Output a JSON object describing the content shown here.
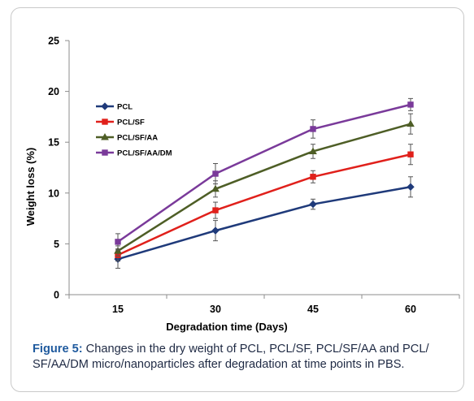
{
  "chart_data": {
    "type": "line",
    "x": [
      15,
      30,
      45,
      60
    ],
    "xlabel": "Degradation time (Days)",
    "ylabel": "Weight loss (%)",
    "ylim": [
      0,
      25
    ],
    "yticks": [
      0,
      5,
      10,
      15,
      20,
      25
    ],
    "xtick_labels": [
      "15",
      "30",
      "45",
      "60"
    ],
    "grid": false,
    "legend_position": "upper-left",
    "series": [
      {
        "name": "PCL",
        "color": "#1f3a7a",
        "marker": "diamond",
        "values": [
          3.5,
          6.3,
          8.9,
          10.6
        ],
        "errors": [
          0.9,
          1.0,
          0.5,
          1.0
        ]
      },
      {
        "name": "PCL/SF",
        "color": "#e0201b",
        "marker": "square",
        "values": [
          3.9,
          8.3,
          11.6,
          13.8
        ],
        "errors": [
          0.6,
          0.8,
          0.6,
          1.0
        ]
      },
      {
        "name": "PCL/SF/AA",
        "color": "#4e5e26",
        "marker": "triangle",
        "values": [
          4.3,
          10.4,
          14.1,
          16.8
        ],
        "errors": [
          0.5,
          0.8,
          0.7,
          1.0
        ]
      },
      {
        "name": "PCL/SF/AA/DM",
        "color": "#7a3a9a",
        "marker": "star",
        "values": [
          5.2,
          11.9,
          16.3,
          18.7
        ],
        "errors": [
          0.8,
          1.0,
          0.9,
          0.6
        ]
      }
    ]
  },
  "caption": {
    "label": "Figure 5:",
    "text": " Changes in the dry weight of PCL, PCL/SF, PCL/SF/AA and PCL/ SF/AA/DM micro/nanoparticles after degradation at time points in PBS."
  }
}
